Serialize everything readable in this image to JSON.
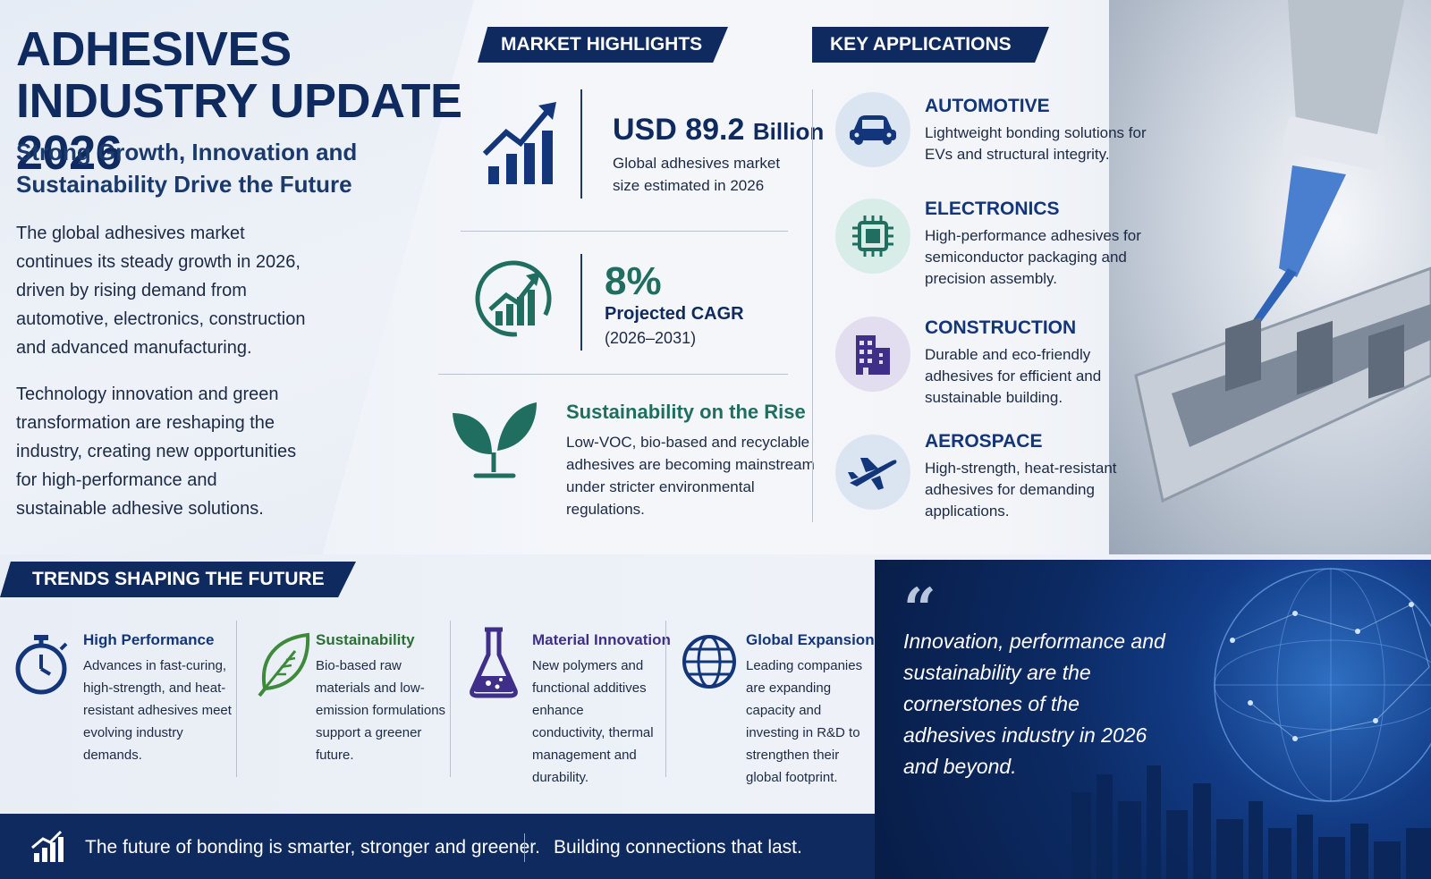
{
  "intro": {
    "title": "ADHESIVES INDUSTRY UPDATE 2026",
    "subtitle": "Strong Growth, Innovation and Sustainability Drive the Future",
    "paragraph1": "The global adhesives market continues its steady growth in 2026, driven by rising demand from automotive, electronics, construction and advanced manufacturing.",
    "paragraph2": "Technology innovation and green transformation are reshaping the industry, creating new opportunities for high-performance and sustainable adhesive solutions."
  },
  "market": {
    "header": "MARKET HIGHLIGHTS",
    "size_value": "USD 89.2",
    "size_unit": "Billion",
    "size_label": "Global adhesives market size estimated in 2026",
    "cagr_value": "8%",
    "cagr_label": "Projected CAGR",
    "cagr_period": "(2026–2031)",
    "sustain_title": "Sustainability on the Rise",
    "sustain_text": "Low-VOC, bio-based and recyclable adhesives are becoming mainstream under stricter environmental regulations.",
    "icons": [
      "bar-growth-icon",
      "circle-growth-icon",
      "leaf-sprout-icon"
    ]
  },
  "applications": {
    "header": "KEY APPLICATIONS",
    "items": [
      {
        "title": "AUTOMOTIVE",
        "desc": "Lightweight bonding solutions for EVs and structural integrity.",
        "icon": "car-icon"
      },
      {
        "title": "ELECTRONICS",
        "desc": "High-performance adhesives for semiconductor packaging and precision assembly.",
        "icon": "chip-icon"
      },
      {
        "title": "CONSTRUCTION",
        "desc": "Durable and eco-friendly adhesives for efficient and sustainable building.",
        "icon": "building-icon"
      },
      {
        "title": "AEROSPACE",
        "desc": "High-strength, heat-resistant adhesives for demanding applications.",
        "icon": "airplane-icon"
      }
    ]
  },
  "trends": {
    "header": "TRENDS SHAPING THE FUTURE",
    "items": [
      {
        "title": "High Performance",
        "desc": "Advances in fast-curing, high-strength, and heat-resistant adhesives meet evolving industry demands.",
        "icon": "stopwatch-icon"
      },
      {
        "title": "Sustainability",
        "desc": "Bio-based raw materials and low-emission formulations support a greener future.",
        "icon": "leaf-icon"
      },
      {
        "title": "Material Innovation",
        "desc": "New polymers and functional additives enhance conductivity, thermal management and durability.",
        "icon": "flask-icon"
      },
      {
        "title": "Global Expansion",
        "desc": "Leading companies are expanding capacity and investing in R&D to strengthen their global footprint.",
        "icon": "globe-icon"
      }
    ]
  },
  "quote": {
    "mark": "“",
    "text": "Innovation, performance and sustainability are the cornerstones of the adhesives industry in 2026 and beyond."
  },
  "footer": {
    "left": "The future of bonding is smarter, stronger and greener.",
    "right": "Building connections that last."
  },
  "colors": {
    "navy": "#0e2a5e",
    "teal": "#1f6e5f",
    "blue": "#13357a"
  }
}
